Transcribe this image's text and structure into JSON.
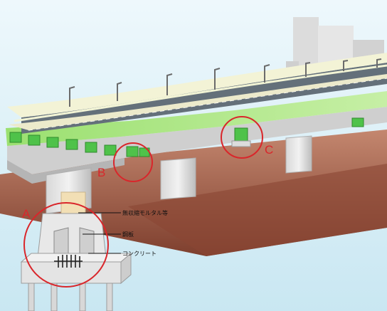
{
  "markers": {
    "a": "A",
    "b": "B",
    "c": "C"
  },
  "callouts": {
    "mortar": "無収縮モルタル等",
    "steel": "鋼板",
    "concrete": "コンクリート"
  },
  "colors": {
    "sky": "#d7eef6",
    "ground": "#9b5a44",
    "deck_green": "#a6e07a",
    "bracket_green": "#4fc24a",
    "marker_red": "#d9262b",
    "road_asphalt": "#64707a",
    "building": "#dcdcdc"
  }
}
